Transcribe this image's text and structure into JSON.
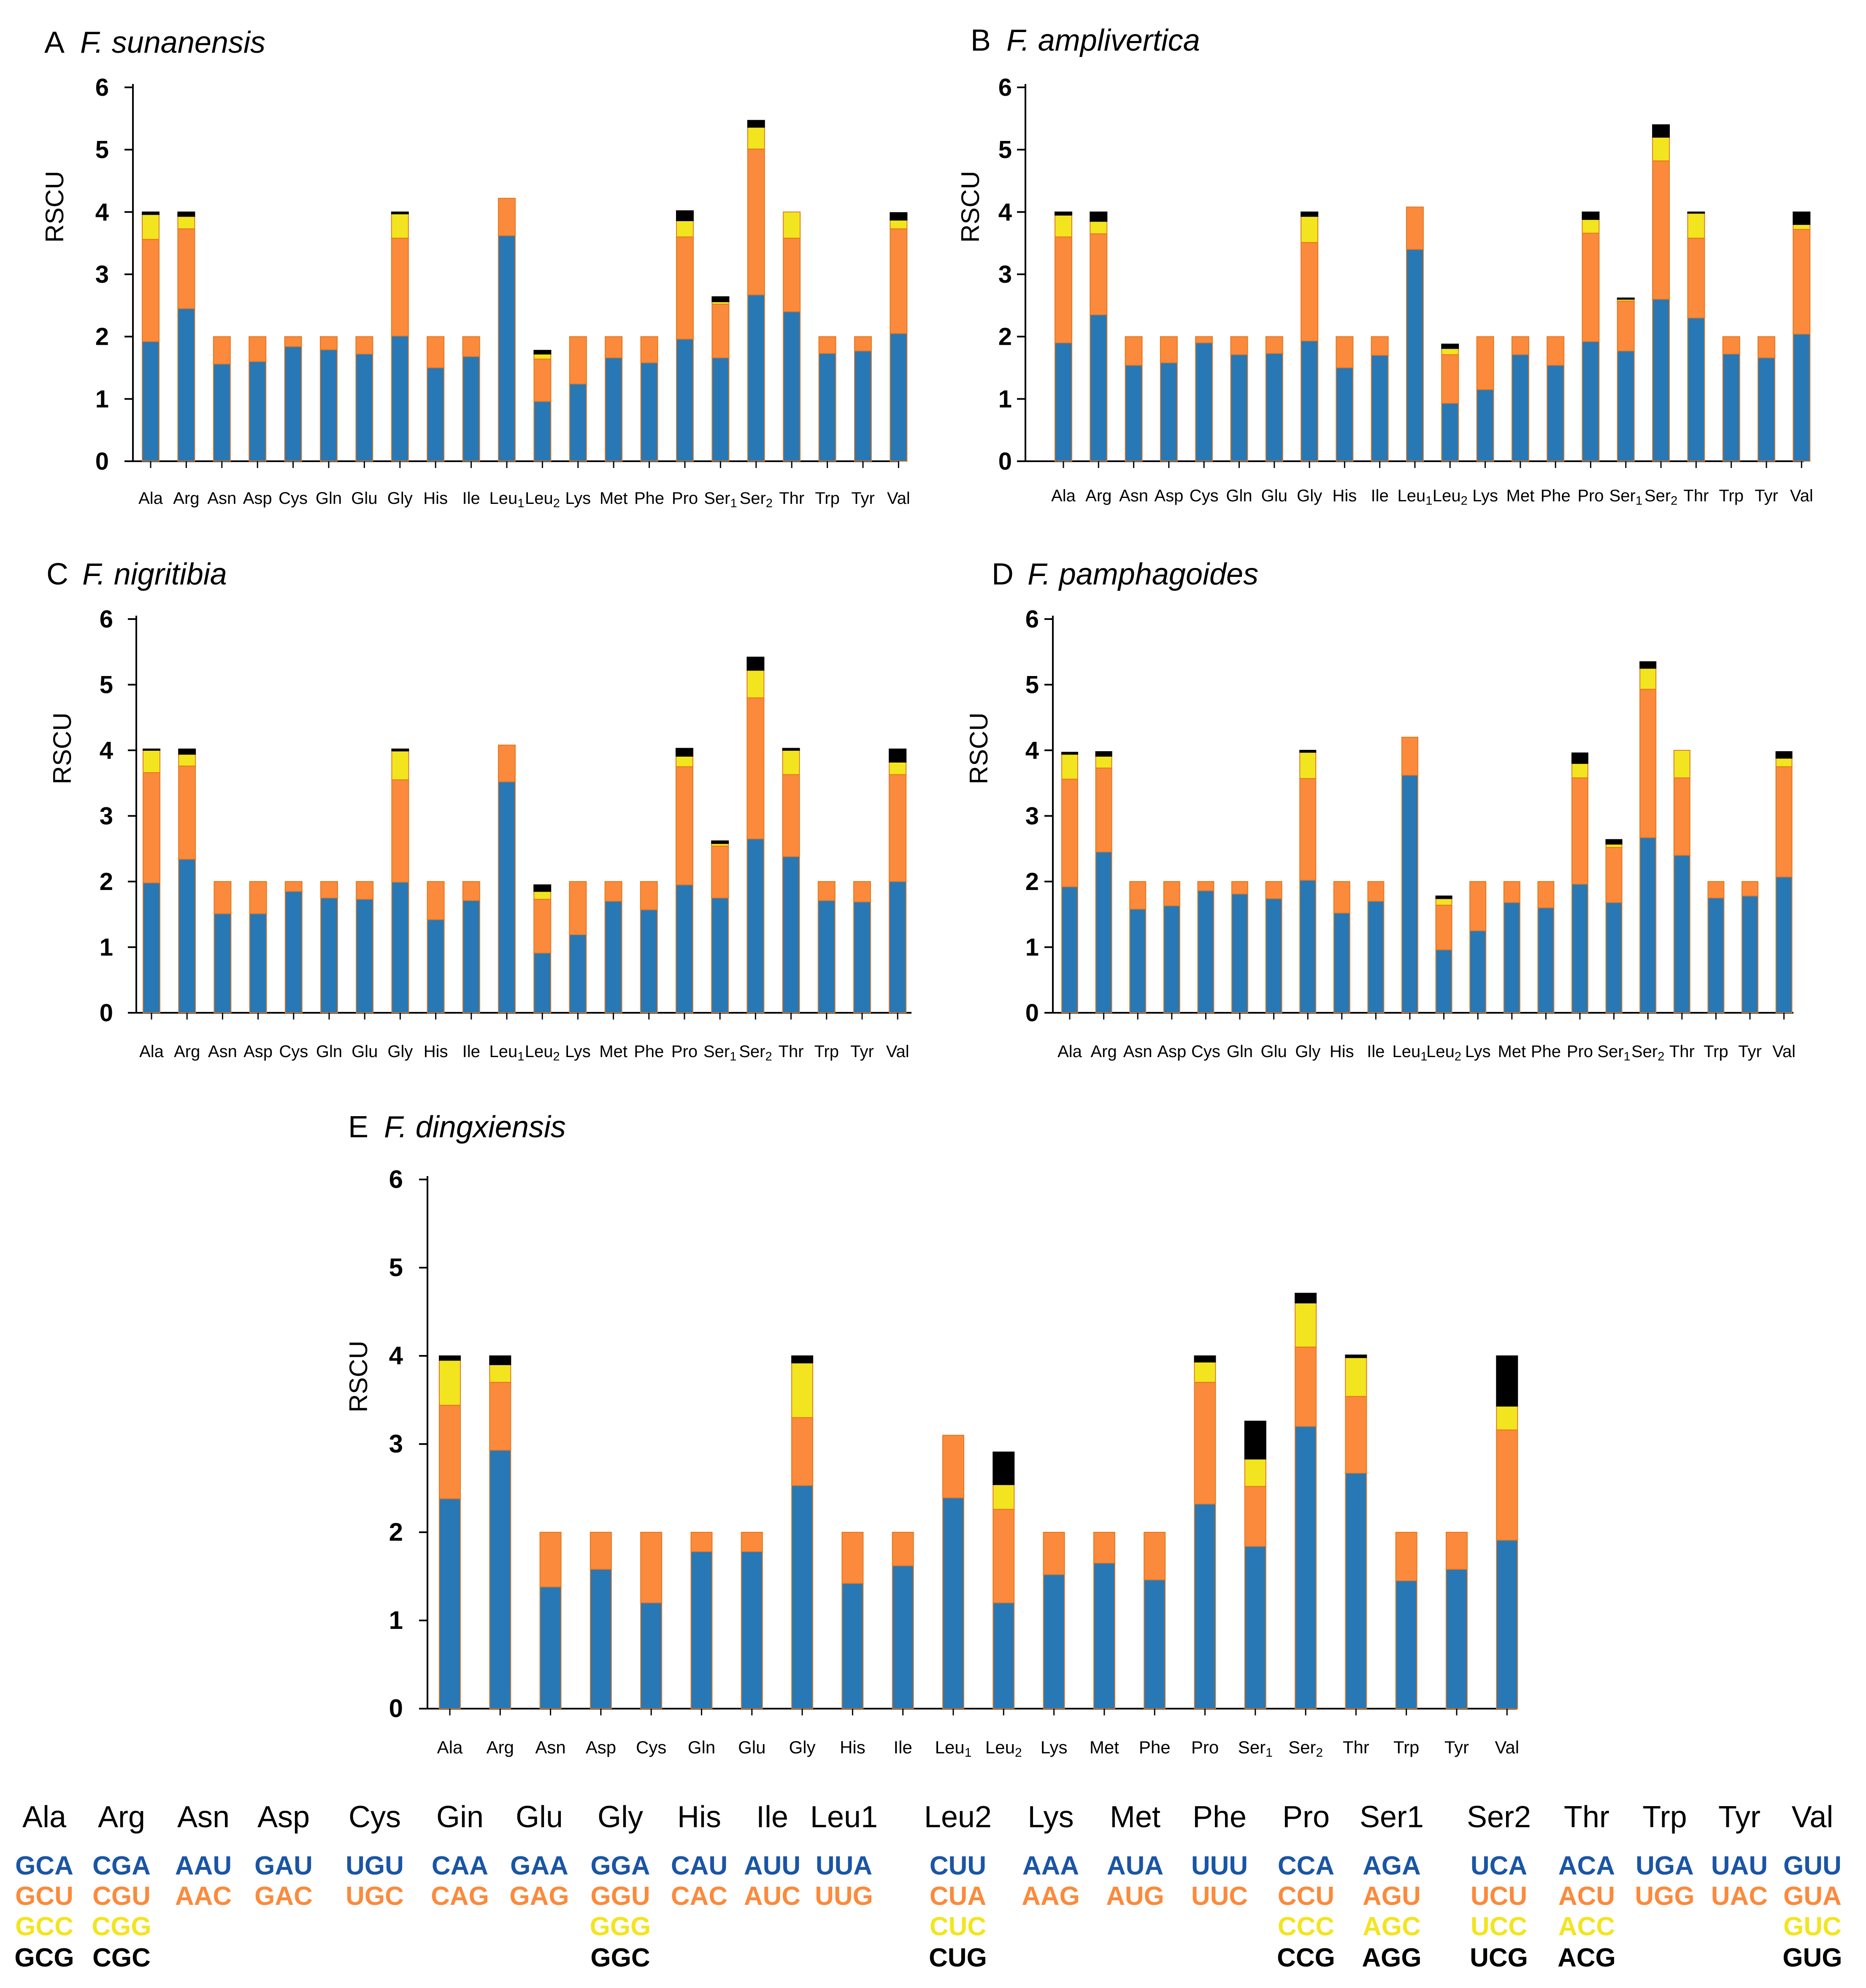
{
  "colors": {
    "c1": "#2878b5",
    "c2": "#fb8a3c",
    "c3": "#f2e51f",
    "c4": "#000000",
    "edge": "#e0781e",
    "legend_c1": "#1a55a6"
  },
  "chart_data": [
    {
      "type": "bar",
      "stacked": true,
      "panel": "A",
      "title": "F. sunanensis",
      "ylabel": "RSCU",
      "ylim": [
        0,
        6
      ],
      "yticks": [
        "0",
        "1",
        "2",
        "3",
        "4",
        "5",
        "6"
      ],
      "categories": [
        "Ala",
        "Arg",
        "Asn",
        "Asp",
        "Cys",
        "Gln",
        "Glu",
        "Gly",
        "His",
        "Ile",
        "Leu1",
        "Leu2",
        "Lys",
        "Met",
        "Phe",
        "Pro",
        "Ser1",
        "Ser2",
        "Thr",
        "Trp",
        "Tyr",
        "Val"
      ],
      "category_labels": [
        [
          "Ala",
          ""
        ],
        [
          "Arg",
          ""
        ],
        [
          "Asn",
          ""
        ],
        [
          "Asp",
          ""
        ],
        [
          "Cys",
          ""
        ],
        [
          "Gln",
          ""
        ],
        [
          "Glu",
          ""
        ],
        [
          "Gly",
          ""
        ],
        [
          "His",
          ""
        ],
        [
          "Ile",
          ""
        ],
        [
          "Leu",
          "1"
        ],
        [
          "Leu",
          "2"
        ],
        [
          "Lys",
          ""
        ],
        [
          "Met",
          ""
        ],
        [
          "Phe",
          ""
        ],
        [
          "Pro",
          ""
        ],
        [
          "Ser",
          "1"
        ],
        [
          "Ser",
          "2"
        ],
        [
          "Thr",
          ""
        ],
        [
          "Trp",
          ""
        ],
        [
          "Tyr",
          ""
        ],
        [
          "Val",
          ""
        ]
      ],
      "stacks": [
        [
          1.92,
          1.64,
          0.4,
          0.04
        ],
        [
          2.45,
          1.28,
          0.2,
          0.07
        ],
        [
          1.56,
          0.44
        ],
        [
          1.6,
          0.4
        ],
        [
          1.84,
          0.16
        ],
        [
          1.79,
          0.21
        ],
        [
          1.72,
          0.28
        ],
        [
          2.01,
          1.57,
          0.39,
          0.03
        ],
        [
          1.5,
          0.5
        ],
        [
          1.68,
          0.32
        ],
        [
          3.62,
          0.6
        ],
        [
          0.96,
          0.68,
          0.08,
          0.06
        ],
        [
          1.24,
          0.76
        ],
        [
          1.66,
          0.34
        ],
        [
          1.58,
          0.42
        ],
        [
          1.96,
          1.64,
          0.26,
          0.16
        ],
        [
          1.66,
          0.86,
          0.04,
          0.08
        ],
        [
          2.67,
          2.34,
          0.35,
          0.11
        ],
        [
          2.4,
          1.18,
          0.42
        ],
        [
          1.73,
          0.27
        ],
        [
          1.77,
          0.23
        ],
        [
          2.05,
          1.68,
          0.14,
          0.12
        ]
      ]
    },
    {
      "type": "bar",
      "stacked": true,
      "panel": "B",
      "title": "F. amplivertica",
      "ylabel": "RSCU",
      "ylim": [
        0,
        6
      ],
      "yticks": [
        "0",
        "1",
        "2",
        "3",
        "4",
        "5",
        "6"
      ],
      "categories": [
        "Ala",
        "Arg",
        "Asn",
        "Asp",
        "Cys",
        "Gln",
        "Glu",
        "Gly",
        "His",
        "Ile",
        "Leu1",
        "Leu2",
        "Lys",
        "Met",
        "Phe",
        "Pro",
        "Ser1",
        "Ser2",
        "Thr",
        "Trp",
        "Tyr",
        "Val"
      ],
      "category_labels": [
        [
          "Ala",
          ""
        ],
        [
          "Arg",
          ""
        ],
        [
          "Asn",
          ""
        ],
        [
          "Asp",
          ""
        ],
        [
          "Cys",
          ""
        ],
        [
          "Gln",
          ""
        ],
        [
          "Glu",
          ""
        ],
        [
          "Gly",
          ""
        ],
        [
          "His",
          ""
        ],
        [
          "Ile",
          ""
        ],
        [
          "Leu",
          "1"
        ],
        [
          "Leu",
          "2"
        ],
        [
          "Lys",
          ""
        ],
        [
          "Met",
          ""
        ],
        [
          "Phe",
          ""
        ],
        [
          "Pro",
          ""
        ],
        [
          "Ser",
          "1"
        ],
        [
          "Ser",
          "2"
        ],
        [
          "Thr",
          ""
        ],
        [
          "Trp",
          ""
        ],
        [
          "Tyr",
          ""
        ],
        [
          "Val",
          ""
        ]
      ],
      "stacks": [
        [
          1.9,
          1.7,
          0.35,
          0.05
        ],
        [
          2.35,
          1.3,
          0.2,
          0.15
        ],
        [
          1.54,
          0.46
        ],
        [
          1.58,
          0.42
        ],
        [
          1.9,
          0.1
        ],
        [
          1.71,
          0.29
        ],
        [
          1.73,
          0.27
        ],
        [
          1.93,
          1.58,
          0.42,
          0.07
        ],
        [
          1.5,
          0.5
        ],
        [
          1.7,
          0.3
        ],
        [
          3.4,
          0.68
        ],
        [
          0.93,
          0.78,
          0.1,
          0.07
        ],
        [
          1.15,
          0.85
        ],
        [
          1.71,
          0.29
        ],
        [
          1.54,
          0.46
        ],
        [
          1.92,
          1.74,
          0.22,
          0.12
        ],
        [
          1.77,
          0.8,
          0.03,
          0.02
        ],
        [
          2.6,
          2.22,
          0.38,
          0.2
        ],
        [
          2.3,
          1.28,
          0.4,
          0.02
        ],
        [
          1.72,
          0.28
        ],
        [
          1.66,
          0.34
        ],
        [
          2.04,
          1.68,
          0.08,
          0.2
        ]
      ]
    },
    {
      "type": "bar",
      "stacked": true,
      "panel": "C",
      "title": "F. nigritibia",
      "ylabel": "RSCU",
      "ylim": [
        0,
        6
      ],
      "yticks": [
        "0",
        "1",
        "2",
        "3",
        "4",
        "5",
        "6"
      ],
      "categories": [
        "Ala",
        "Arg",
        "Asn",
        "Asp",
        "Cys",
        "Gln",
        "Glu",
        "Gly",
        "His",
        "Ile",
        "Leu1",
        "Leu2",
        "Lys",
        "Met",
        "Phe",
        "Pro",
        "Ser1",
        "Ser2",
        "Thr",
        "Trp",
        "Tyr",
        "Val"
      ],
      "category_labels": [
        [
          "Ala",
          ""
        ],
        [
          "Arg",
          ""
        ],
        [
          "Asn",
          ""
        ],
        [
          "Asp",
          ""
        ],
        [
          "Cys",
          ""
        ],
        [
          "Gln",
          ""
        ],
        [
          "Glu",
          ""
        ],
        [
          "Gly",
          ""
        ],
        [
          "His",
          ""
        ],
        [
          "Ile",
          ""
        ],
        [
          "Leu",
          "1"
        ],
        [
          "Leu",
          "2"
        ],
        [
          "Lys",
          ""
        ],
        [
          "Met",
          ""
        ],
        [
          "Phe",
          ""
        ],
        [
          "Pro",
          ""
        ],
        [
          "Ser",
          "1"
        ],
        [
          "Ser",
          "2"
        ],
        [
          "Thr",
          ""
        ],
        [
          "Trp",
          ""
        ],
        [
          "Tyr",
          ""
        ],
        [
          "Val",
          ""
        ]
      ],
      "stacks": [
        [
          1.98,
          1.68,
          0.34,
          0.02
        ],
        [
          2.34,
          1.42,
          0.18,
          0.08
        ],
        [
          1.51,
          0.49
        ],
        [
          1.51,
          0.49
        ],
        [
          1.85,
          0.15
        ],
        [
          1.75,
          0.25
        ],
        [
          1.73,
          0.27
        ],
        [
          1.99,
          1.56,
          0.44,
          0.03
        ],
        [
          1.42,
          0.58
        ],
        [
          1.71,
          0.29
        ],
        [
          3.52,
          0.56
        ],
        [
          0.91,
          0.82,
          0.12,
          0.1
        ],
        [
          1.19,
          0.81
        ],
        [
          1.7,
          0.3
        ],
        [
          1.57,
          0.43
        ],
        [
          1.95,
          1.8,
          0.16,
          0.12
        ],
        [
          1.75,
          0.79,
          0.04,
          0.04
        ],
        [
          2.65,
          2.15,
          0.42,
          0.2
        ],
        [
          2.38,
          1.25,
          0.37,
          0.03
        ],
        [
          1.71,
          0.29
        ],
        [
          1.69,
          0.31
        ],
        [
          2.0,
          1.63,
          0.19,
          0.2
        ]
      ]
    },
    {
      "type": "bar",
      "stacked": true,
      "panel": "D",
      "title": "F. pamphagoides",
      "ylabel": "RSCU",
      "ylim": [
        0,
        6
      ],
      "yticks": [
        "0",
        "1",
        "2",
        "3",
        "4",
        "5",
        "6"
      ],
      "categories": [
        "Ala",
        "Arg",
        "Asn",
        "Asp",
        "Cys",
        "Gln",
        "Glu",
        "Gly",
        "His",
        "Ile",
        "Leu1",
        "Leu2",
        "Lys",
        "Met",
        "Phe",
        "Pro",
        "Ser1",
        "Ser2",
        "Thr",
        "Trp",
        "Tyr",
        "Val"
      ],
      "category_labels": [
        [
          "Ala",
          ""
        ],
        [
          "Arg",
          ""
        ],
        [
          "Asn",
          ""
        ],
        [
          "Asp",
          ""
        ],
        [
          "Cys",
          ""
        ],
        [
          "Gln",
          ""
        ],
        [
          "Glu",
          ""
        ],
        [
          "Gly",
          ""
        ],
        [
          "His",
          ""
        ],
        [
          "Ile",
          ""
        ],
        [
          "Leu",
          "1"
        ],
        [
          "Leu",
          "2"
        ],
        [
          "Lys",
          ""
        ],
        [
          "Met",
          ""
        ],
        [
          "Phe",
          ""
        ],
        [
          "Pro",
          ""
        ],
        [
          "Ser",
          "1"
        ],
        [
          "Ser",
          "2"
        ],
        [
          "Thr",
          ""
        ],
        [
          "Trp",
          ""
        ],
        [
          "Tyr",
          ""
        ],
        [
          "Val",
          ""
        ]
      ],
      "stacks": [
        [
          1.92,
          1.64,
          0.38,
          0.03
        ],
        [
          2.45,
          1.28,
          0.18,
          0.07
        ],
        [
          1.58,
          0.42
        ],
        [
          1.63,
          0.37
        ],
        [
          1.86,
          0.14
        ],
        [
          1.81,
          0.19
        ],
        [
          1.74,
          0.26
        ],
        [
          2.02,
          1.55,
          0.4,
          0.03
        ],
        [
          1.52,
          0.48
        ],
        [
          1.7,
          0.3
        ],
        [
          3.62,
          0.58
        ],
        [
          0.96,
          0.68,
          0.1,
          0.04
        ],
        [
          1.25,
          0.75
        ],
        [
          1.68,
          0.32
        ],
        [
          1.6,
          0.4
        ],
        [
          1.96,
          1.62,
          0.22,
          0.16
        ],
        [
          1.68,
          0.84,
          0.05,
          0.07
        ],
        [
          2.67,
          2.26,
          0.32,
          0.1
        ],
        [
          2.4,
          1.18,
          0.42
        ],
        [
          1.75,
          0.25
        ],
        [
          1.78,
          0.22
        ],
        [
          2.07,
          1.68,
          0.13,
          0.1
        ]
      ]
    },
    {
      "type": "bar",
      "stacked": true,
      "panel": "E",
      "title": "F. dingxiensis",
      "ylabel": "RSCU",
      "ylim": [
        0,
        6
      ],
      "yticks": [
        "0",
        "1",
        "2",
        "3",
        "4",
        "5",
        "6"
      ],
      "categories": [
        "Ala",
        "Arg",
        "Asn",
        "Asp",
        "Cys",
        "Gln",
        "Glu",
        "Gly",
        "His",
        "Ile",
        "Leu1",
        "Leu2",
        "Lys",
        "Met",
        "Phe",
        "Pro",
        "Ser1",
        "Ser2",
        "Thr",
        "Trp",
        "Tyr",
        "Val"
      ],
      "category_labels": [
        [
          "Ala",
          ""
        ],
        [
          "Arg",
          ""
        ],
        [
          "Asn",
          ""
        ],
        [
          "Asp",
          ""
        ],
        [
          "Cys",
          ""
        ],
        [
          "Gln",
          ""
        ],
        [
          "Glu",
          ""
        ],
        [
          "Gly",
          ""
        ],
        [
          "His",
          ""
        ],
        [
          "Ile",
          ""
        ],
        [
          "Leu",
          "1"
        ],
        [
          "Leu",
          "2"
        ],
        [
          "Lys",
          ""
        ],
        [
          "Met",
          ""
        ],
        [
          "Phe",
          ""
        ],
        [
          "Pro",
          ""
        ],
        [
          "Ser",
          "1"
        ],
        [
          "Ser",
          "2"
        ],
        [
          "Thr",
          ""
        ],
        [
          "Trp",
          ""
        ],
        [
          "Tyr",
          ""
        ],
        [
          "Val",
          ""
        ]
      ],
      "stacks": [
        [
          2.38,
          1.06,
          0.51,
          0.05
        ],
        [
          2.93,
          0.77,
          0.2,
          0.1
        ],
        [
          1.38,
          0.62
        ],
        [
          1.58,
          0.42
        ],
        [
          1.2,
          0.8
        ],
        [
          1.78,
          0.22
        ],
        [
          1.78,
          0.22
        ],
        [
          2.53,
          0.77,
          0.62,
          0.08
        ],
        [
          1.42,
          0.58
        ],
        [
          1.62,
          0.38
        ],
        [
          2.39,
          0.71
        ],
        [
          1.2,
          1.06,
          0.28,
          0.37
        ],
        [
          1.52,
          0.48
        ],
        [
          1.65,
          0.35
        ],
        [
          1.46,
          0.54
        ],
        [
          2.32,
          1.38,
          0.23,
          0.07
        ],
        [
          1.84,
          0.68,
          0.31,
          0.43
        ],
        [
          3.2,
          0.9,
          0.5,
          0.11
        ],
        [
          2.67,
          0.87,
          0.44,
          0.03
        ],
        [
          1.45,
          0.55
        ],
        [
          1.58,
          0.42
        ],
        [
          1.91,
          1.25,
          0.27,
          0.57
        ]
      ]
    }
  ],
  "legend": [
    {
      "aa": "Ala",
      "codons": [
        "GCA",
        "GCU",
        "GCC",
        "GCG"
      ]
    },
    {
      "aa": "Arg",
      "codons": [
        "CGA",
        "CGU",
        "CGG",
        "CGC"
      ]
    },
    {
      "aa": "Asn",
      "codons": [
        "AAU",
        "AAC"
      ]
    },
    {
      "aa": "Asp",
      "codons": [
        "GAU",
        "GAC"
      ]
    },
    {
      "aa": "Cys",
      "codons": [
        "UGU",
        "UGC"
      ]
    },
    {
      "aa": "Gin",
      "codons": [
        "CAA",
        "CAG"
      ]
    },
    {
      "aa": "Glu",
      "codons": [
        "GAA",
        "GAG"
      ]
    },
    {
      "aa": "Gly",
      "codons": [
        "GGA",
        "GGU",
        "GGG",
        "GGC"
      ]
    },
    {
      "aa": "His",
      "codons": [
        "CAU",
        "CAC"
      ]
    },
    {
      "aa": "Ile",
      "codons": [
        "AUU",
        "AUC"
      ]
    },
    {
      "aa": "Leu1",
      "codons": [
        "UUA",
        "UUG"
      ]
    },
    {
      "aa": "Leu2",
      "codons": [
        "CUU",
        "CUA",
        "CUC",
        "CUG"
      ]
    },
    {
      "aa": "Lys",
      "codons": [
        "AAA",
        "AAG"
      ]
    },
    {
      "aa": "Met",
      "codons": [
        "AUA",
        "AUG"
      ]
    },
    {
      "aa": "Phe",
      "codons": [
        "UUU",
        "UUC"
      ]
    },
    {
      "aa": "Pro",
      "codons": [
        "CCA",
        "CCU",
        "CCC",
        "CCG"
      ]
    },
    {
      "aa": "Ser1",
      "codons": [
        "AGA",
        "AGU",
        "AGC",
        "AGG"
      ]
    },
    {
      "aa": "Ser2",
      "codons": [
        "UCA",
        "UCU",
        "UCC",
        "UCG"
      ]
    },
    {
      "aa": "Thr",
      "codons": [
        "ACA",
        "ACU",
        "ACC",
        "ACG"
      ]
    },
    {
      "aa": "Trp",
      "codons": [
        "UGA",
        "UGG"
      ]
    },
    {
      "aa": "Tyr",
      "codons": [
        "UAU",
        "UAC"
      ]
    },
    {
      "aa": "Val",
      "codons": [
        "GUU",
        "GUA",
        "GUC",
        "GUG"
      ]
    }
  ]
}
